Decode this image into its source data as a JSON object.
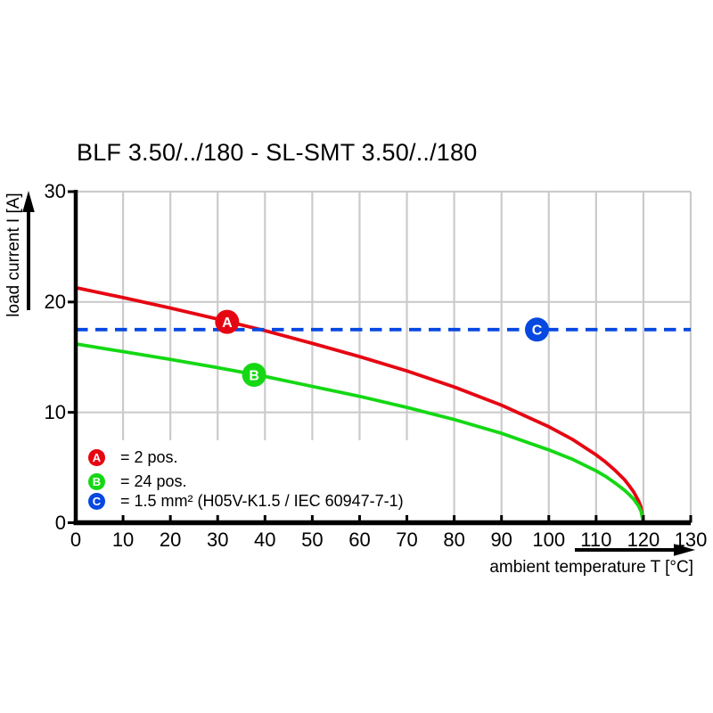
{
  "title": "BLF 3.50/../180 - SL-SMT 3.50/../180",
  "colors": {
    "red": "#e60612",
    "green": "#14d814",
    "blue": "#0748e0",
    "grid": "#cbcbcb",
    "axis": "#000000",
    "legend_bg": "#ffffff"
  },
  "x_axis": {
    "label": "ambient temperature T [°C]",
    "min": 0,
    "max": 130,
    "ticks": [
      0,
      10,
      20,
      30,
      40,
      50,
      60,
      70,
      80,
      90,
      100,
      110,
      120,
      130
    ]
  },
  "y_axis": {
    "label": "load current I [A]",
    "min": 0,
    "max": 30,
    "ticks": [
      0,
      10,
      20,
      30
    ]
  },
  "legend": [
    {
      "id": "A",
      "color": "#e60612",
      "label": "= 2 pos."
    },
    {
      "id": "B",
      "color": "#14d814",
      "label": "= 24 pos."
    },
    {
      "id": "C",
      "color": "#0748e0",
      "label": "= 1.5 mm² (H05V-K1.5 / IEC 60947-7-1)"
    }
  ],
  "chart_data": {
    "type": "line",
    "title": "BLF 3.50/../180 - SL-SMT 3.50/../180",
    "xlabel": "ambient temperature T [°C]",
    "ylabel": "load current I [A]",
    "xlim": [
      0,
      130
    ],
    "ylim": [
      0,
      30
    ],
    "grid": true,
    "legend_position": "inside-bottom-left",
    "series": [
      {
        "name": "A = 2 pos.",
        "color": "#e60612",
        "style": "solid",
        "points": [
          [
            0,
            21.3
          ],
          [
            10,
            20.4
          ],
          [
            20,
            19.45
          ],
          [
            30,
            18.45
          ],
          [
            40,
            17.4
          ],
          [
            50,
            16.25
          ],
          [
            60,
            15.05
          ],
          [
            70,
            13.75
          ],
          [
            80,
            12.3
          ],
          [
            90,
            10.65
          ],
          [
            100,
            8.7
          ],
          [
            105,
            7.55
          ],
          [
            110,
            6.15
          ],
          [
            112,
            5.5
          ],
          [
            114,
            4.75
          ],
          [
            116,
            3.9
          ],
          [
            117,
            3.35
          ],
          [
            118,
            2.75
          ],
          [
            119,
            1.95
          ],
          [
            119.5,
            1.4
          ],
          [
            120,
            0
          ]
        ]
      },
      {
        "name": "B = 24 pos.",
        "color": "#14d814",
        "style": "solid",
        "points": [
          [
            0,
            16.2
          ],
          [
            10,
            15.5
          ],
          [
            20,
            14.8
          ],
          [
            30,
            14.05
          ],
          [
            40,
            13.25
          ],
          [
            50,
            12.35
          ],
          [
            60,
            11.45
          ],
          [
            70,
            10.45
          ],
          [
            80,
            9.35
          ],
          [
            90,
            8.1
          ],
          [
            100,
            6.6
          ],
          [
            105,
            5.75
          ],
          [
            110,
            4.7
          ],
          [
            112,
            4.2
          ],
          [
            114,
            3.6
          ],
          [
            116,
            2.95
          ],
          [
            117,
            2.55
          ],
          [
            118,
            2.1
          ],
          [
            119,
            1.5
          ],
          [
            119.5,
            1.05
          ],
          [
            120,
            0
          ]
        ]
      },
      {
        "name": "C = 1.5 mm² (H05V-K1.5 / IEC 60947-7-1)",
        "color": "#0748e0",
        "style": "dashed",
        "points": [
          [
            0,
            17.5
          ],
          [
            130,
            17.5
          ]
        ]
      }
    ],
    "markers": [
      {
        "id": "A",
        "x": 32,
        "y": 18.2,
        "color": "#e60612"
      },
      {
        "id": "B",
        "x": 37.7,
        "y": 13.4,
        "color": "#14d814"
      },
      {
        "id": "C",
        "x": 97.5,
        "y": 17.5,
        "color": "#0748e0"
      }
    ]
  }
}
